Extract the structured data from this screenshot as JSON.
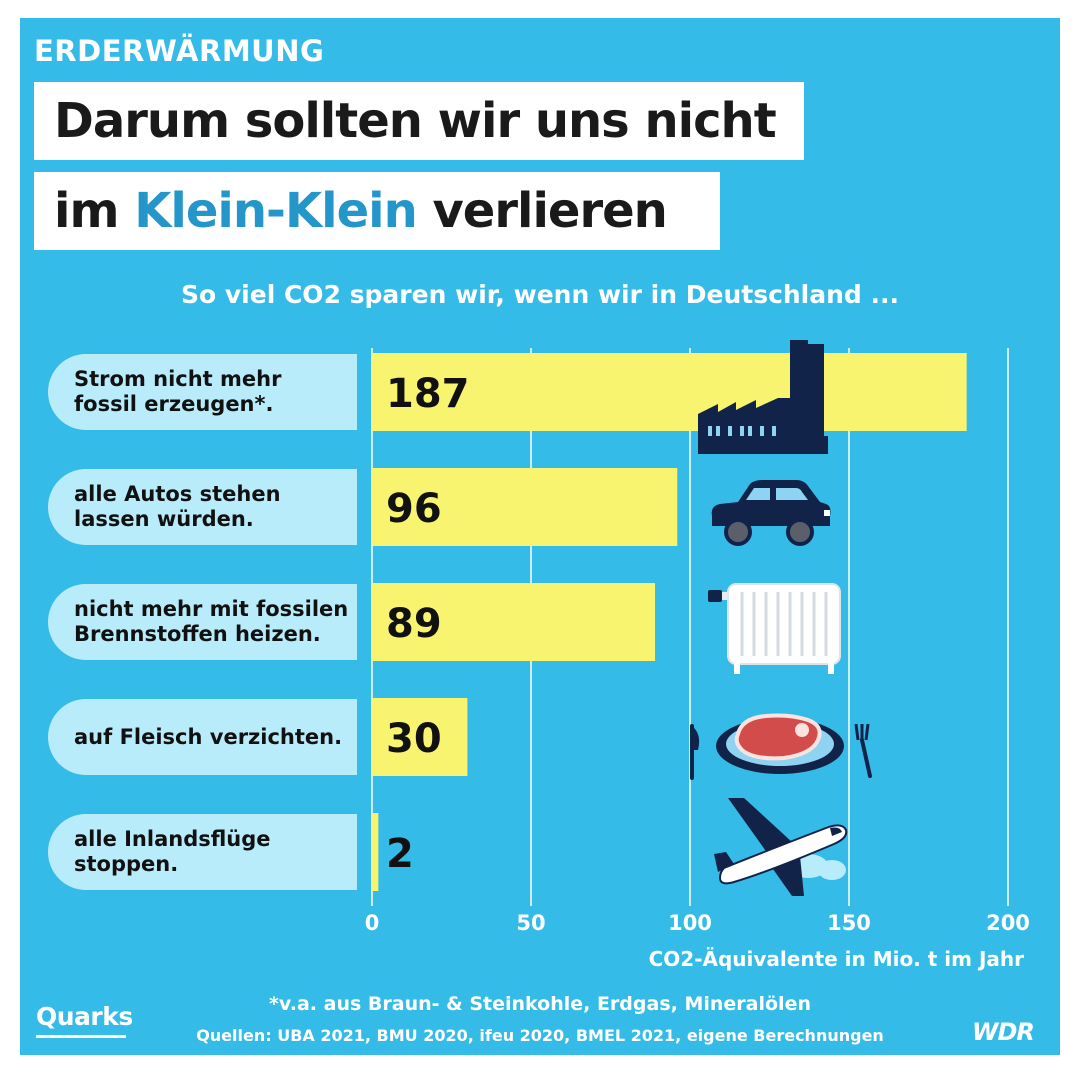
{
  "header": {
    "kicker": "ERDERWÄRMUNG",
    "line1": "Darum sollten wir uns nicht",
    "line2_pre": "im ",
    "line2_highlight": "Klein-Klein",
    "line2_post": " verlieren"
  },
  "subtitle": "So viel CO2 sparen wir, wenn wir in Deutschland ...",
  "chart_data": {
    "type": "bar",
    "orientation": "horizontal",
    "categories": [
      "Strom nicht mehr\nfossil erzeugen*.",
      "alle Autos stehen\nlassen würden.",
      "nicht mehr mit fossilen\nBrennstoffen heizen.",
      "auf Fleisch verzichten.",
      "alle Inlandsflüge\nstoppen."
    ],
    "values": [
      187,
      96,
      89,
      30,
      2
    ],
    "value_labels": [
      "187",
      "96",
      "89",
      "30",
      "2"
    ],
    "icons": [
      "factory-icon",
      "car-icon",
      "radiator-icon",
      "steak-plate-icon",
      "airplane-icon"
    ],
    "xlim": [
      0,
      200
    ],
    "xticks": [
      0,
      50,
      100,
      150,
      200
    ],
    "xtick_labels": [
      "0",
      "50",
      "100",
      "150",
      "200"
    ],
    "xlabel": "CO2-Äquivalente in Mio. t im Jahr",
    "grid": true
  },
  "footer": {
    "footnote": "*v.a. aus Braun- & Steinkohle, Erdgas, Mineralölen",
    "sources": "Quellen: UBA 2021, BMU 2020, ifeu 2020, BMEL 2021, eigene Berechnungen",
    "brand_left": "Quarks",
    "brand_right": "WDR"
  },
  "colors": {
    "background": "#35bbe8",
    "bar": "#f8f46f",
    "label_pill": "#b9ecfa",
    "icon_dark": "#12234a",
    "value_text": "#111111"
  }
}
